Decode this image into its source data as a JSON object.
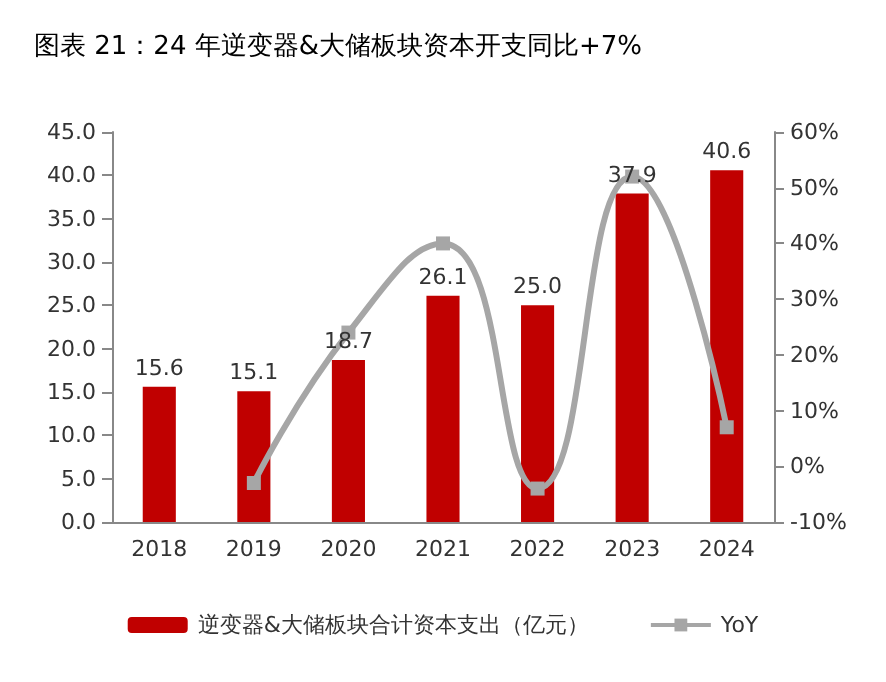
{
  "chart_data": {
    "type": "bar",
    "title": "图表 21：24 年逆变器&大储板块资本开支同比+7%",
    "categories": [
      "2018",
      "2019",
      "2020",
      "2021",
      "2022",
      "2023",
      "2024"
    ],
    "series": [
      {
        "name": "逆变器&大储板块合计资本支出（亿元）",
        "color": "#c00000",
        "values": [
          15.6,
          15.1,
          18.7,
          26.1,
          25.0,
          37.9,
          40.6
        ],
        "value_labels": [
          "15.6",
          "15.1",
          "18.7",
          "26.1",
          "25.0",
          "37.9",
          "40.6"
        ]
      },
      {
        "name": "YoY",
        "type": "line",
        "axis": "y2",
        "color": "#a6a6a6",
        "marker": "square",
        "values": [
          null,
          -3,
          24,
          40,
          -4,
          52,
          7
        ]
      }
    ],
    "ylim": [
      0,
      45
    ],
    "yticks": [
      {
        "value": 0,
        "label": "0.0"
      },
      {
        "value": 5,
        "label": "5.0"
      },
      {
        "value": 10,
        "label": "10.0"
      },
      {
        "value": 15,
        "label": "15.0"
      },
      {
        "value": 20,
        "label": "20.0"
      },
      {
        "value": 25,
        "label": "25.0"
      },
      {
        "value": 30,
        "label": "30.0"
      },
      {
        "value": 35,
        "label": "35.0"
      },
      {
        "value": 40,
        "label": "40.0"
      },
      {
        "value": 45,
        "label": "45.0"
      }
    ],
    "y2lim": [
      -10,
      60
    ],
    "y2ticks": [
      {
        "value": -10,
        "label": "-10%"
      },
      {
        "value": 0,
        "label": "0%"
      },
      {
        "value": 10,
        "label": "10%"
      },
      {
        "value": 20,
        "label": "20%"
      },
      {
        "value": 30,
        "label": "30%"
      },
      {
        "value": 40,
        "label": "40%"
      },
      {
        "value": 50,
        "label": "50%"
      },
      {
        "value": 60,
        "label": "60%"
      }
    ],
    "grid": false,
    "legend": "bottom"
  }
}
